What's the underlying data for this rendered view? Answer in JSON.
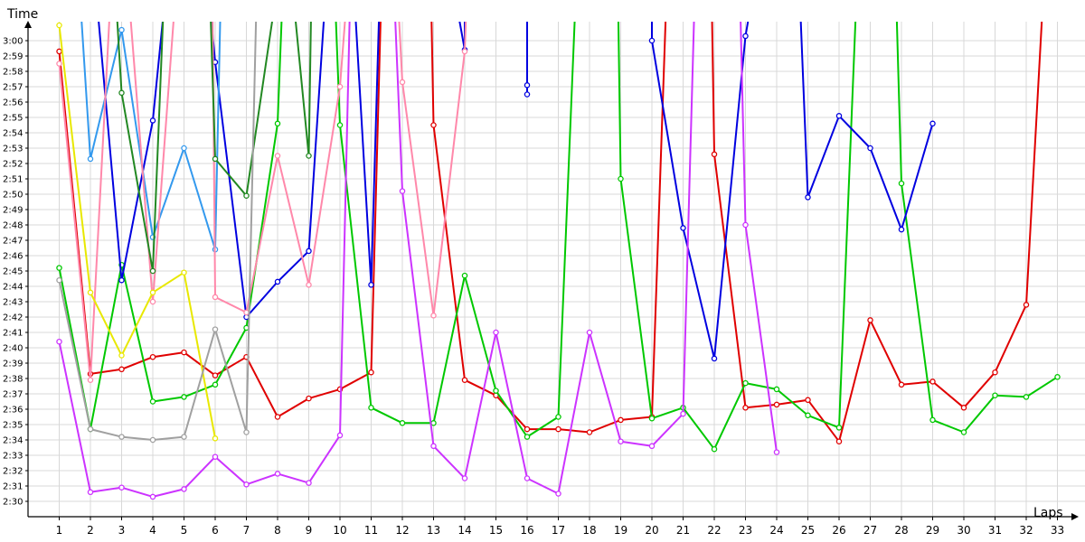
{
  "chart_data": {
    "type": "line",
    "title": "",
    "xlabel": "Laps",
    "ylabel": "Time",
    "xlim": [
      0,
      33
    ],
    "ylim": [
      149,
      182
    ],
    "grid": true,
    "legend": "none",
    "x_ticks": [
      "1",
      "2",
      "3",
      "4",
      "5",
      "6",
      "7",
      "8",
      "9",
      "10",
      "11",
      "12",
      "13",
      "14",
      "15",
      "16",
      "17",
      "18",
      "19",
      "20",
      "21",
      "22",
      "23",
      "24",
      "25",
      "26",
      "27",
      "28",
      "29",
      "30",
      "31",
      "32",
      "33"
    ],
    "y_ticks": [
      {
        "v": 150,
        "label": "2:30"
      },
      {
        "v": 151,
        "label": "2:31"
      },
      {
        "v": 152,
        "label": "2:32"
      },
      {
        "v": 153,
        "label": "2:33"
      },
      {
        "v": 154,
        "label": "2:34"
      },
      {
        "v": 155,
        "label": "2:35"
      },
      {
        "v": 156,
        "label": "2:36"
      },
      {
        "v": 157,
        "label": "2:37"
      },
      {
        "v": 158,
        "label": "2:38"
      },
      {
        "v": 159,
        "label": "2:39"
      },
      {
        "v": 160,
        "label": "2:40"
      },
      {
        "v": 161,
        "label": "2:41"
      },
      {
        "v": 162,
        "label": "2:42"
      },
      {
        "v": 163,
        "label": "2:43"
      },
      {
        "v": 164,
        "label": "2:44"
      },
      {
        "v": 165,
        "label": "2:45"
      },
      {
        "v": 166,
        "label": "2:46"
      },
      {
        "v": 167,
        "label": "2:47"
      },
      {
        "v": 168,
        "label": "2:48"
      },
      {
        "v": 169,
        "label": "2:49"
      },
      {
        "v": 170,
        "label": "2:50"
      },
      {
        "v": 171,
        "label": "2:51"
      },
      {
        "v": 172,
        "label": "2:52"
      },
      {
        "v": 173,
        "label": "2:53"
      },
      {
        "v": 174,
        "label": "2:54"
      },
      {
        "v": 175,
        "label": "2:55"
      },
      {
        "v": 176,
        "label": "2:56"
      },
      {
        "v": 177,
        "label": "2:57"
      },
      {
        "v": 178,
        "label": "2:58"
      },
      {
        "v": 179,
        "label": "2:59"
      },
      {
        "v": 180,
        "label": "3:00"
      }
    ],
    "series": [
      {
        "color": "#e00000",
        "points": [
          [
            1,
            179.3
          ],
          [
            2,
            158.3
          ],
          [
            3,
            158.6
          ],
          [
            4,
            159.4
          ],
          [
            5,
            159.7
          ],
          [
            6,
            158.2
          ],
          [
            7,
            159.4
          ],
          [
            8,
            155.5
          ],
          [
            9,
            156.7
          ],
          [
            10,
            157.3
          ],
          [
            11,
            158.4
          ],
          [
            11.35,
            185
          ],
          null,
          [
            12.9,
            185
          ],
          [
            13,
            174.5
          ],
          [
            14,
            157.9
          ],
          [
            15,
            156.9
          ],
          [
            16,
            154.7
          ],
          [
            17,
            154.7
          ],
          [
            18,
            154.5
          ],
          [
            19,
            155.3
          ],
          [
            20,
            155.5
          ],
          [
            20.5,
            185
          ],
          null,
          [
            21.9,
            185
          ],
          [
            22,
            172.6
          ],
          [
            23,
            156.1
          ],
          [
            24,
            156.3
          ],
          [
            25,
            156.6
          ],
          [
            26,
            153.9
          ],
          [
            27,
            161.8
          ],
          [
            28,
            157.6
          ],
          [
            29,
            157.8
          ],
          [
            30,
            156.1
          ],
          [
            31,
            158.4
          ],
          [
            32,
            162.8
          ],
          [
            32.6,
            185
          ]
        ]
      },
      {
        "color": "#00c800",
        "points": [
          [
            1,
            165.2
          ],
          [
            2,
            154.7
          ],
          [
            3,
            165.4
          ],
          [
            4,
            156.5
          ],
          [
            5,
            156.8
          ],
          [
            6,
            157.6
          ],
          [
            7,
            161.3
          ],
          [
            8,
            174.6
          ],
          [
            8.2,
            185
          ],
          null,
          [
            9.8,
            185
          ],
          [
            10,
            174.5
          ],
          [
            11,
            156.1
          ],
          [
            12,
            155.1
          ],
          [
            13,
            155.1
          ],
          [
            14,
            164.7
          ],
          [
            15,
            157.2
          ],
          [
            16,
            154.2
          ],
          [
            17,
            155.5
          ],
          [
            17.6,
            185
          ],
          null,
          [
            18.9,
            185
          ],
          [
            19,
            171.0
          ],
          [
            20,
            155.4
          ],
          [
            21,
            156.1
          ],
          [
            22,
            153.4
          ],
          [
            23,
            157.7
          ],
          [
            24,
            157.3
          ],
          [
            25,
            155.6
          ],
          [
            26,
            154.8
          ],
          [
            26.6,
            185
          ],
          null,
          [
            27.8,
            185
          ],
          [
            28,
            170.7
          ],
          [
            29,
            155.3
          ],
          [
            30,
            154.5
          ],
          [
            31,
            156.9
          ],
          [
            32,
            156.8
          ],
          [
            33,
            158.1
          ]
        ]
      },
      {
        "color": "#0000e0",
        "points": [
          [
            2.1,
            185
          ],
          [
            3,
            164.4
          ],
          [
            4,
            174.8
          ],
          [
            4.5,
            185
          ],
          null,
          [
            9.6,
            185
          ],
          [
            9,
            166.3
          ],
          [
            8,
            164.3
          ],
          [
            7,
            162.0
          ],
          [
            6,
            178.6
          ],
          [
            5.7,
            185
          ],
          null,
          [
            10.4,
            185
          ],
          [
            11,
            164.1
          ],
          [
            11.3,
            185
          ],
          null,
          [
            13.5,
            185
          ],
          [
            14,
            179.4
          ],
          [
            14,
            185
          ],
          null,
          [
            16,
            185
          ],
          [
            16,
            177.1
          ],
          [
            16,
            176.5
          ],
          [
            16,
            185
          ],
          null,
          [
            20,
            185
          ],
          [
            20,
            180.0
          ],
          [
            21,
            167.8
          ],
          [
            22,
            159.3
          ],
          [
            23,
            180.3
          ],
          [
            23.4,
            185
          ],
          null,
          [
            24.7,
            185
          ],
          [
            25,
            169.8
          ],
          [
            26,
            175.1
          ],
          [
            27,
            173.0
          ],
          [
            28,
            167.7
          ],
          [
            29,
            174.6
          ]
        ]
      },
      {
        "color": "#cc33ff",
        "points": [
          [
            1,
            160.4
          ],
          [
            2,
            150.6
          ],
          [
            3,
            150.9
          ],
          [
            4,
            150.3
          ],
          [
            5,
            150.8
          ],
          [
            6,
            152.9
          ],
          [
            7,
            151.1
          ],
          [
            8,
            151.8
          ],
          [
            9,
            151.2
          ],
          [
            10,
            154.3
          ],
          [
            10.35,
            185
          ],
          null,
          [
            11.7,
            185
          ],
          [
            12,
            170.2
          ],
          [
            13,
            153.6
          ],
          [
            14,
            151.5
          ],
          [
            15,
            161.0
          ],
          [
            16,
            151.5
          ],
          [
            17,
            150.5
          ],
          [
            18,
            161.0
          ],
          [
            19,
            153.9
          ],
          [
            20,
            153.6
          ],
          [
            21,
            155.7
          ],
          [
            21.4,
            185
          ],
          null,
          [
            22.8,
            185
          ],
          [
            23,
            168.0
          ],
          [
            24,
            153.2
          ]
        ]
      },
      {
        "color": "#3399ee",
        "points": [
          [
            1.6,
            185
          ],
          [
            2,
            172.3
          ],
          [
            3,
            180.7
          ],
          [
            4,
            167.2
          ],
          [
            5,
            173.0
          ],
          [
            6,
            166.4
          ],
          [
            6.2,
            185
          ]
        ]
      },
      {
        "color": "#ff88aa",
        "points": [
          [
            1,
            178.5
          ],
          [
            2,
            157.9
          ],
          [
            2.7,
            185
          ],
          null,
          [
            3.15,
            185
          ],
          [
            4,
            163.0
          ],
          [
            4.8,
            185
          ],
          null,
          [
            5.9,
            185
          ],
          [
            6,
            163.3
          ],
          [
            7,
            162.3
          ],
          [
            8,
            172.5
          ],
          [
            9,
            164.1
          ],
          [
            10,
            177.0
          ],
          [
            10.3,
            185
          ],
          null,
          [
            11.8,
            185
          ],
          [
            12,
            177.3
          ],
          [
            13,
            162.1
          ],
          [
            14,
            179.3
          ],
          [
            14.1,
            185
          ]
        ]
      },
      {
        "color": "#228822",
        "points": [
          [
            2.75,
            185
          ],
          [
            3,
            176.6
          ],
          [
            4,
            165.0
          ],
          [
            4.4,
            185
          ],
          null,
          [
            5.8,
            185
          ],
          [
            6,
            172.3
          ],
          [
            7,
            169.9
          ],
          [
            8.1,
            185
          ],
          null,
          [
            8.4,
            185
          ],
          [
            9,
            172.5
          ],
          [
            9.1,
            185
          ]
        ]
      },
      {
        "color": "#e8e800",
        "points": [
          [
            1,
            181.0
          ],
          [
            2,
            163.6
          ],
          [
            3,
            159.5
          ],
          [
            4,
            163.6
          ],
          [
            5,
            164.9
          ],
          [
            6,
            154.1
          ]
        ]
      },
      {
        "color": "#a0a0a0",
        "points": [
          [
            1,
            164.4
          ],
          [
            2,
            154.7
          ],
          [
            3,
            154.2
          ],
          [
            4,
            154.0
          ],
          [
            5,
            154.2
          ],
          [
            6,
            161.2
          ],
          [
            7,
            154.5
          ],
          [
            7.35,
            185
          ]
        ]
      }
    ]
  }
}
